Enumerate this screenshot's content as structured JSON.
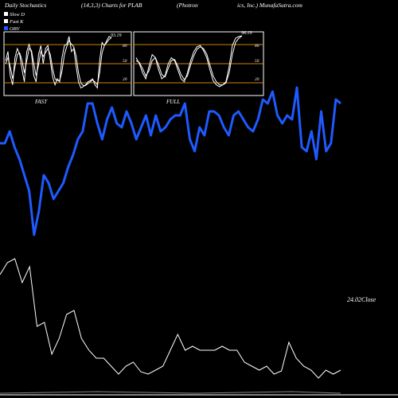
{
  "header": {
    "left": "Daily Stochastics",
    "mid": "(14,3,3) Charts for PLAB",
    "right_a": "(Photron",
    "right_b": "ics, Inc.) MunafaSutra.com"
  },
  "legend": [
    {
      "label": "Slow  D",
      "color": "#ffffff"
    },
    {
      "label": "Fast K",
      "color": "#ffffff"
    },
    {
      "label": "OBV",
      "color": "#1e5aff"
    }
  ],
  "colors": {
    "obv": "#1e5aff",
    "close": "#ffffff",
    "level_line": "#d4820a",
    "background": "#000000"
  },
  "panels": [
    {
      "title": "FAST",
      "level_labels": [
        "80",
        "50",
        "20"
      ],
      "last_value_label": "93.19",
      "fast_k": [
        55,
        70,
        30,
        15,
        60,
        75,
        65,
        40,
        20,
        70,
        82,
        68,
        30,
        20,
        65,
        80,
        50,
        75,
        80,
        55,
        28,
        15,
        25,
        20,
        60,
        80,
        82,
        95,
        70,
        75,
        45,
        20,
        10,
        12,
        15,
        20,
        22,
        25,
        15,
        10,
        55,
        85,
        80,
        88,
        95,
        93
      ],
      "slow_d": [
        50,
        60,
        45,
        25,
        45,
        65,
        68,
        55,
        35,
        55,
        75,
        72,
        50,
        30,
        48,
        70,
        62,
        68,
        75,
        65,
        42,
        25,
        22,
        22,
        38,
        65,
        78,
        88,
        82,
        78,
        62,
        35,
        18,
        14,
        14,
        17,
        20,
        23,
        20,
        15,
        35,
        68,
        80,
        85,
        90,
        93
      ]
    },
    {
      "title": "FULL",
      "level_labels": [
        "80",
        "50",
        "20"
      ],
      "last_value_label": "96.19",
      "fast_k": [
        60,
        50,
        35,
        25,
        45,
        65,
        60,
        40,
        25,
        30,
        50,
        60,
        55,
        40,
        25,
        20,
        35,
        55,
        70,
        78,
        80,
        72,
        60,
        40,
        22,
        15,
        12,
        15,
        20,
        45,
        80,
        92,
        95,
        96
      ],
      "slow_d": [
        55,
        52,
        42,
        30,
        38,
        55,
        60,
        48,
        32,
        28,
        42,
        55,
        57,
        46,
        32,
        24,
        30,
        48,
        63,
        74,
        78,
        75,
        66,
        48,
        30,
        20,
        15,
        15,
        18,
        35,
        65,
        85,
        92,
        96
      ]
    }
  ],
  "chart_data": {
    "type": "line",
    "series": [
      {
        "name": "OBV",
        "values": [
          210,
          210,
          225,
          205,
          190,
          170,
          150,
          95,
          125,
          170,
          160,
          140,
          150,
          160,
          180,
          195,
          215,
          225,
          260,
          260,
          235,
          215,
          240,
          255,
          235,
          230,
          250,
          235,
          215,
          230,
          245,
          220,
          245,
          225,
          230,
          240,
          245,
          245,
          260,
          215,
          200,
          230,
          220,
          250,
          250,
          245,
          230,
          220,
          245,
          250,
          240,
          230,
          225,
          240,
          265,
          260,
          275,
          245,
          235,
          245,
          240,
          280,
          205,
          200,
          225,
          190,
          250,
          200,
          210,
          265,
          260
        ]
      },
      {
        "name": "Close",
        "values": [
          135,
          150,
          155,
          125,
          145,
          70,
          75,
          35,
          55,
          85,
          90,
          55,
          40,
          30,
          30,
          20,
          10,
          20,
          25,
          13,
          10,
          15,
          20,
          40,
          60,
          40,
          45,
          40,
          40,
          40,
          45,
          40,
          40,
          25,
          20,
          15,
          20,
          10,
          14,
          50,
          30,
          20,
          15,
          5,
          15,
          10,
          15
        ]
      },
      {
        "name": "",
        "values": [
          0,
          1,
          2,
          1,
          0,
          1,
          2,
          0
        ]
      }
    ],
    "close_label": "24.02Close",
    "obv_title": "",
    "price_title": ""
  }
}
